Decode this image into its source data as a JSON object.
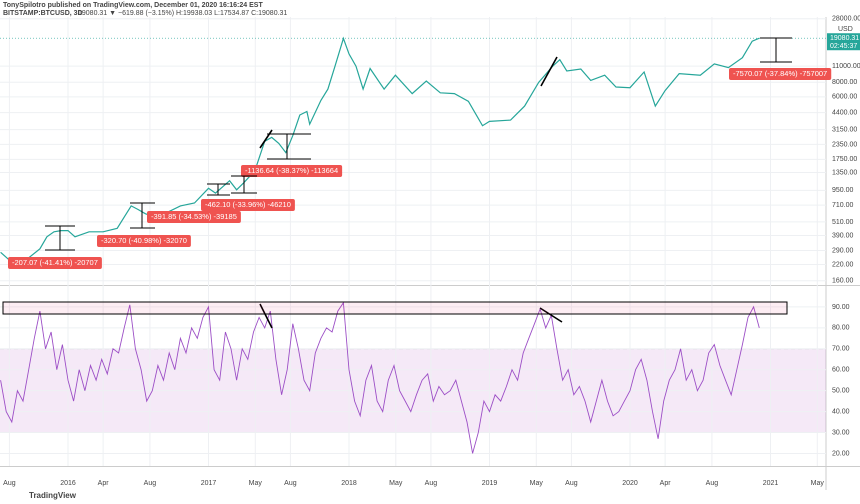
{
  "header": {
    "publisher": "TonySpilotro published on TradingView.com, December 01, 2020 16:16:24 EST",
    "symbol": "BITSTAMP:BTCUSD, 3D",
    "quote": "19080.31 ▼ −619.88 (−3.15%) H:19938.03 L:17534.87 C:19080.31"
  },
  "chart_data": [
    {
      "type": "line",
      "log_scale": true,
      "grid": true,
      "color": "#26a69a",
      "unit": "USD",
      "last_price_label": "19080.31",
      "countdown": "02:45:37",
      "x": [
        2015.52,
        2015.6,
        2015.7,
        2015.8,
        2015.85,
        2015.9,
        2015.95,
        2016.0,
        2016.05,
        2016.15,
        2016.25,
        2016.35,
        2016.45,
        2016.5,
        2016.55,
        2016.6,
        2016.7,
        2016.8,
        2016.9,
        2017.0,
        2017.05,
        2017.15,
        2017.2,
        2017.25,
        2017.33,
        2017.4,
        2017.45,
        2017.5,
        2017.55,
        2017.6,
        2017.65,
        2017.7,
        2017.72,
        2017.8,
        2017.85,
        2017.9,
        2017.96,
        2018.0,
        2018.05,
        2018.1,
        2018.15,
        2018.25,
        2018.33,
        2018.45,
        2018.55,
        2018.65,
        2018.75,
        2018.85,
        2018.95,
        2019.0,
        2019.15,
        2019.25,
        2019.35,
        2019.45,
        2019.5,
        2019.55,
        2019.65,
        2019.72,
        2019.82,
        2019.9,
        2020.0,
        2020.1,
        2020.18,
        2020.25,
        2020.35,
        2020.5,
        2020.6,
        2020.7,
        2020.8,
        2020.87,
        2020.92
      ],
      "values": [
        280,
        230,
        240,
        300,
        380,
        420,
        430,
        430,
        380,
        420,
        420,
        450,
        700,
        650,
        600,
        570,
        610,
        700,
        740,
        990,
        900,
        1150,
        960,
        1100,
        1400,
        2500,
        2700,
        2400,
        2000,
        2800,
        4200,
        4500,
        3500,
        5600,
        7000,
        11000,
        19000,
        14000,
        11000,
        7000,
        10500,
        7000,
        9200,
        6400,
        8200,
        6500,
        6400,
        5500,
        3400,
        3700,
        3800,
        5000,
        8000,
        11000,
        12500,
        10000,
        10400,
        8300,
        9200,
        7300,
        7200,
        9800,
        5000,
        6800,
        9500,
        9200,
        11500,
        10700,
        13000,
        18000,
        19080.31
      ],
      "xlim": [
        2015.516,
        2021.395
      ],
      "ylim": [
        147,
        29000
      ],
      "yticks": [
        {
          "value": 160,
          "label": "160.00"
        },
        {
          "value": 220,
          "label": "220.00"
        },
        {
          "value": 290,
          "label": "290.00"
        },
        {
          "value": 390,
          "label": "390.00"
        },
        {
          "value": 510,
          "label": "510.00"
        },
        {
          "value": 710,
          "label": "710.00"
        },
        {
          "value": 950,
          "label": "950.00"
        },
        {
          "value": 1350,
          "label": "1350.00"
        },
        {
          "value": 1750,
          "label": "1750.00"
        },
        {
          "value": 2350,
          "label": "2350.00"
        },
        {
          "value": 3150,
          "label": "3150.00"
        },
        {
          "value": 4400,
          "label": "4400.00"
        },
        {
          "value": 6000,
          "label": "6000.00"
        },
        {
          "value": 8000,
          "label": "8000.00"
        },
        {
          "value": 11000,
          "label": "11000.00"
        },
        {
          "value": 28000,
          "label": "28000.00"
        }
      ],
      "annotations": [
        "-207.07 (-41.41%) -20707",
        "-320.70 (-40.98%) -32070",
        "-391.85 (-34.53%) -39185",
        "-462.10 (-33.96%) -46210",
        "-1136.64 (-38.37%) -113664",
        "-7570.07 (-37.84%) -757007"
      ]
    },
    {
      "type": "line",
      "color": "#9c4fc6",
      "bands": [
        30,
        70
      ],
      "x": [
        2015.52,
        2015.56,
        2015.6,
        2015.64,
        2015.68,
        2015.72,
        2015.76,
        2015.8,
        2015.84,
        2015.88,
        2015.92,
        2015.96,
        2016.0,
        2016.04,
        2016.08,
        2016.12,
        2016.16,
        2016.2,
        2016.24,
        2016.28,
        2016.32,
        2016.36,
        2016.4,
        2016.44,
        2016.48,
        2016.52,
        2016.56,
        2016.6,
        2016.64,
        2016.68,
        2016.72,
        2016.76,
        2016.8,
        2016.84,
        2016.88,
        2016.92,
        2016.96,
        2017.0,
        2017.04,
        2017.08,
        2017.12,
        2017.16,
        2017.2,
        2017.24,
        2017.28,
        2017.32,
        2017.36,
        2017.4,
        2017.44,
        2017.48,
        2017.52,
        2017.56,
        2017.6,
        2017.64,
        2017.68,
        2017.72,
        2017.76,
        2017.8,
        2017.84,
        2017.88,
        2017.92,
        2017.96,
        2018.0,
        2018.04,
        2018.08,
        2018.12,
        2018.16,
        2018.2,
        2018.24,
        2018.28,
        2018.32,
        2018.36,
        2018.4,
        2018.44,
        2018.48,
        2018.52,
        2018.56,
        2018.6,
        2018.64,
        2018.68,
        2018.72,
        2018.76,
        2018.8,
        2018.84,
        2018.88,
        2018.92,
        2018.96,
        2019.0,
        2019.04,
        2019.08,
        2019.12,
        2019.16,
        2019.2,
        2019.24,
        2019.28,
        2019.32,
        2019.36,
        2019.4,
        2019.44,
        2019.48,
        2019.52,
        2019.56,
        2019.6,
        2019.64,
        2019.68,
        2019.72,
        2019.76,
        2019.8,
        2019.84,
        2019.88,
        2019.92,
        2019.96,
        2020.0,
        2020.04,
        2020.08,
        2020.12,
        2020.16,
        2020.2,
        2020.24,
        2020.28,
        2020.32,
        2020.36,
        2020.4,
        2020.44,
        2020.48,
        2020.52,
        2020.56,
        2020.6,
        2020.64,
        2020.68,
        2020.72,
        2020.76,
        2020.8,
        2020.84,
        2020.88,
        2020.92
      ],
      "values": [
        55,
        40,
        35,
        50,
        45,
        60,
        75,
        88,
        70,
        78,
        60,
        72,
        55,
        45,
        60,
        50,
        62,
        55,
        65,
        58,
        70,
        68,
        80,
        91,
        70,
        60,
        45,
        50,
        62,
        55,
        68,
        60,
        75,
        68,
        80,
        75,
        85,
        90,
        60,
        55,
        78,
        70,
        55,
        70,
        65,
        78,
        85,
        80,
        88,
        65,
        48,
        60,
        82,
        70,
        55,
        50,
        68,
        75,
        80,
        78,
        88,
        92,
        60,
        45,
        38,
        55,
        62,
        45,
        40,
        55,
        62,
        50,
        45,
        40,
        48,
        55,
        58,
        45,
        52,
        48,
        50,
        55,
        45,
        35,
        20,
        30,
        45,
        40,
        48,
        45,
        52,
        60,
        55,
        68,
        75,
        82,
        89,
        80,
        86,
        70,
        55,
        60,
        48,
        52,
        45,
        35,
        45,
        55,
        45,
        38,
        40,
        45,
        50,
        60,
        65,
        55,
        40,
        27,
        45,
        55,
        60,
        70,
        55,
        60,
        50,
        55,
        68,
        72,
        62,
        55,
        48,
        60,
        72,
        85,
        90,
        80
      ],
      "xlim": [
        2015.516,
        2021.395
      ],
      "ylim": [
        14,
        100
      ],
      "yticks": [
        {
          "value": 20,
          "label": "20.00"
        },
        {
          "value": 30,
          "label": "30.00"
        },
        {
          "value": 40,
          "label": "40.00"
        },
        {
          "value": 50,
          "label": "50.00"
        },
        {
          "value": 60,
          "label": "60.00"
        },
        {
          "value": 70,
          "label": "70.00"
        },
        {
          "value": 80,
          "label": "80.00"
        },
        {
          "value": 90,
          "label": "90.00"
        }
      ],
      "xticks": [
        {
          "value": 2015.583,
          "label": "Aug"
        },
        2016,
        {
          "value": 2016.25,
          "label": "Apr"
        },
        {
          "value": 2016.583,
          "label": "Aug"
        },
        2017,
        {
          "value": 2017.333,
          "label": "May"
        },
        {
          "value": 2017.583,
          "label": "Aug"
        },
        2018,
        {
          "value": 2018.333,
          "label": "May"
        },
        {
          "value": 2018.583,
          "label": "Aug"
        },
        2019,
        {
          "value": 2019.333,
          "label": "May"
        },
        {
          "value": 2019.583,
          "label": "Aug"
        },
        2020,
        {
          "value": 2020.25,
          "label": "Apr"
        },
        {
          "value": 2020.583,
          "label": "Aug"
        },
        2021,
        {
          "value": 2021.333,
          "label": "May"
        }
      ]
    }
  ],
  "footer": "TradingView"
}
